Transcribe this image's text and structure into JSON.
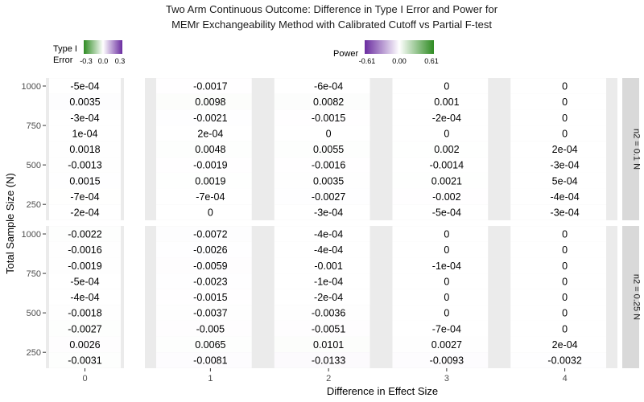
{
  "chart_data": {
    "type": "heatmap",
    "title_lines": [
      "Two Arm Continuous Outcome: Difference in Type I Error and Power for",
      "MEMr Exchangeability Method with Calibrated Cutoff vs Partial F-test"
    ],
    "xlabel": "Difference in Effect Size",
    "ylabel": "Total Sample Size (N)",
    "y_ticks": [
      "1000",
      "750",
      "500",
      "250"
    ],
    "x_categories": [
      "0",
      "1",
      "2",
      "3",
      "4"
    ],
    "y_range": [
      200,
      1000
    ],
    "y_values": [
      1000,
      900,
      800,
      700,
      600,
      500,
      400,
      300,
      200
    ],
    "legends": {
      "type1": {
        "title_lines": [
          "Type I",
          "Error"
        ],
        "ticks": [
          "-0.3",
          "0.0",
          "0.3"
        ],
        "low": "#2e8b22",
        "mid": "#ffffff",
        "high": "#6a2ca0"
      },
      "power": {
        "title": "Power",
        "ticks": [
          "-0.61",
          "0.00",
          "0.61"
        ],
        "low": "#6a2ca0",
        "mid": "#ffffff",
        "high": "#2e8b22"
      }
    },
    "facets": [
      {
        "strip_label": "n2 = 0.1 N",
        "type1_values": [
          "-5e-04",
          "0.0035",
          "-3e-04",
          "1e-04",
          "0.0018",
          "-0.0013",
          "0.0015",
          "-7e-04",
          "-2e-04"
        ],
        "power_values": [
          [
            "-0.0017",
            "-6e-04",
            "0",
            "0"
          ],
          [
            "0.0098",
            "0.0082",
            "0.001",
            "0"
          ],
          [
            "-0.0021",
            "-0.0015",
            "-2e-04",
            "0"
          ],
          [
            "2e-04",
            "0",
            "0",
            "0"
          ],
          [
            "0.0048",
            "0.0055",
            "0.002",
            "2e-04"
          ],
          [
            "-0.0019",
            "-0.0016",
            "-0.0014",
            "-3e-04"
          ],
          [
            "0.0019",
            "0.0035",
            "0.0021",
            "5e-04"
          ],
          [
            "-7e-04",
            "-0.0027",
            "-0.002",
            "-4e-04"
          ],
          [
            "0",
            "-3e-04",
            "-5e-04",
            "-3e-04"
          ]
        ]
      },
      {
        "strip_label": "n2 = 0.25 N",
        "type1_values": [
          "-0.0022",
          "-0.0016",
          "-0.0019",
          "-5e-04",
          "-4e-04",
          "-0.0018",
          "-0.0027",
          "0.0026",
          "-0.0031"
        ],
        "power_values": [
          [
            "-0.0072",
            "-4e-04",
            "0",
            "0"
          ],
          [
            "-0.0026",
            "-4e-04",
            "0",
            "0"
          ],
          [
            "-0.0059",
            "-0.001",
            "-1e-04",
            "0"
          ],
          [
            "-0.0023",
            "-1e-04",
            "0",
            "0"
          ],
          [
            "-0.0015",
            "-2e-04",
            "0",
            "0"
          ],
          [
            "-0.0037",
            "-0.0036",
            "0",
            "0"
          ],
          [
            "-0.005",
            "-0.0051",
            "-7e-04",
            "0"
          ],
          [
            "0.0065",
            "0.0101",
            "0.0027",
            "2e-04"
          ],
          [
            "-0.0081",
            "-0.0133",
            "-0.0093",
            "-0.0032"
          ]
        ]
      }
    ]
  }
}
